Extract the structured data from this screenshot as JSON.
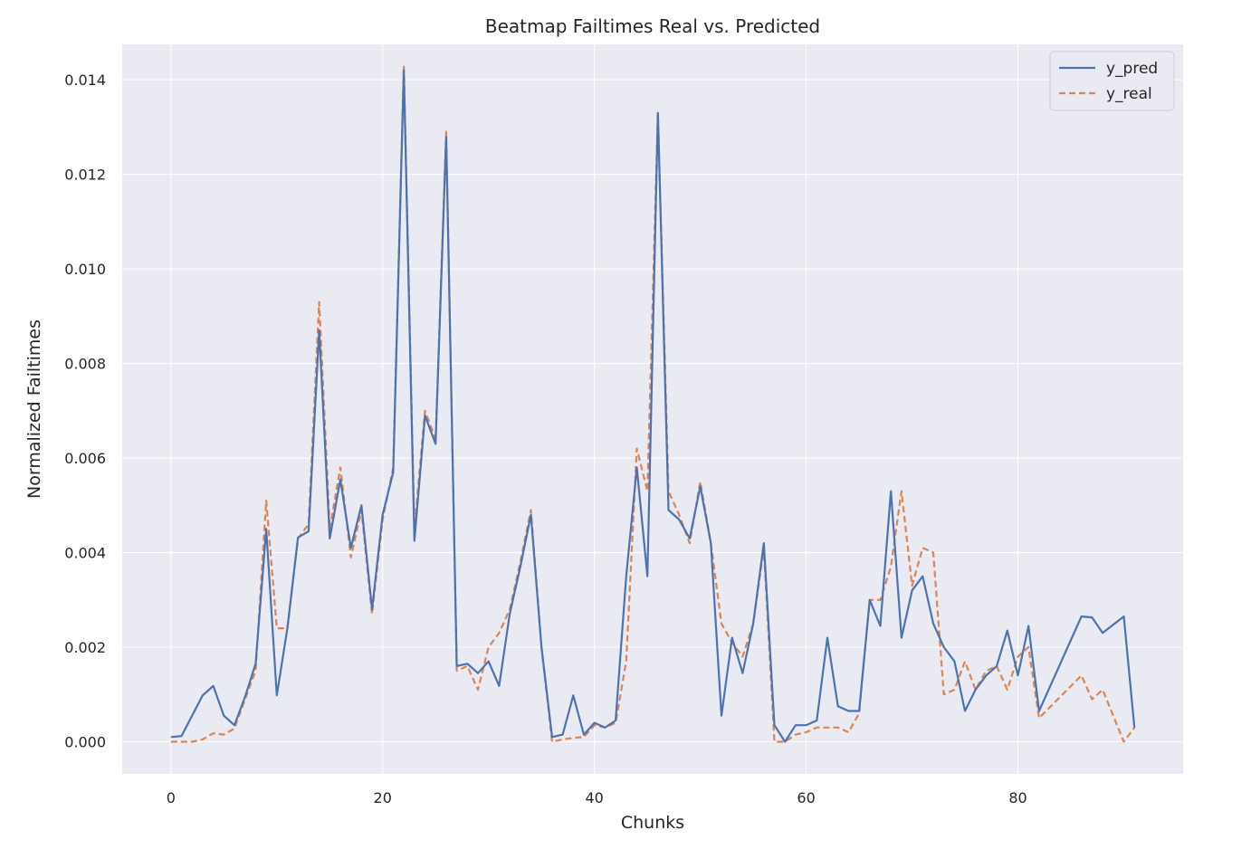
{
  "chart_data": {
    "type": "line",
    "title": "Beatmap Failtimes Real vs. Predicted",
    "xlabel": "Chunks",
    "ylabel": "Normalized Failtimes",
    "xlim": [
      -4.6,
      95.6
    ],
    "ylim": [
      -0.00068,
      0.01475
    ],
    "xticks": [
      0,
      20,
      40,
      60,
      80
    ],
    "yticks": [
      0,
      0.002,
      0.004,
      0.006,
      0.008,
      0.01,
      0.012,
      0.014
    ],
    "ytick_labels": [
      "0.000",
      "0.002",
      "0.004",
      "0.006",
      "0.008",
      "0.010",
      "0.012",
      "0.014"
    ],
    "grid": true,
    "legend_position": "top-right",
    "series": [
      {
        "name": "y_pred",
        "color": "#4c72b0",
        "linestyle": "solid",
        "x": [
          0,
          1,
          2,
          3,
          4,
          5,
          6,
          7,
          8,
          9,
          10,
          11,
          12,
          13,
          14,
          15,
          16,
          17,
          18,
          19,
          20,
          21,
          22,
          23,
          24,
          25,
          26,
          27,
          28,
          29,
          30,
          31,
          32,
          33,
          34,
          35,
          36,
          37,
          38,
          39,
          40,
          41,
          42,
          43,
          44,
          45,
          46,
          47,
          48,
          49,
          50,
          51,
          52,
          53,
          54,
          55,
          56,
          57,
          58,
          59,
          60,
          61,
          62,
          63,
          64,
          65,
          66,
          67,
          68,
          69,
          70,
          71,
          72,
          73,
          74,
          75,
          76,
          77,
          78,
          79,
          80,
          81,
          82,
          86,
          87,
          88,
          90,
          91
        ],
        "y": [
          0.0001,
          0.00012,
          0.00055,
          0.00098,
          0.00118,
          0.00055,
          0.00035,
          0.00095,
          0.00165,
          0.0045,
          0.00098,
          0.0024,
          0.00432,
          0.00445,
          0.0087,
          0.0043,
          0.00555,
          0.0041,
          0.005,
          0.0028,
          0.0048,
          0.0057,
          0.0142,
          0.00425,
          0.0069,
          0.0063,
          0.0128,
          0.0016,
          0.00165,
          0.00145,
          0.0017,
          0.00118,
          0.0027,
          0.0037,
          0.0048,
          0.002,
          0.0001,
          0.00015,
          0.00098,
          0.00015,
          0.0004,
          0.0003,
          0.00045,
          0.0035,
          0.0058,
          0.0035,
          0.0133,
          0.0049,
          0.0047,
          0.0043,
          0.0054,
          0.0042,
          0.00055,
          0.0022,
          0.00145,
          0.0025,
          0.0042,
          0.00035,
          0.0,
          0.00035,
          0.00035,
          0.00045,
          0.0022,
          0.00075,
          0.00065,
          0.00065,
          0.003,
          0.00245,
          0.0053,
          0.0022,
          0.0032,
          0.0035,
          0.0025,
          0.002,
          0.0017,
          0.00065,
          0.0011,
          0.0014,
          0.0016,
          0.00235,
          0.0014,
          0.00245,
          0.00065,
          0.00265,
          0.00263,
          0.0023,
          0.00265,
          0.0003
        ]
      },
      {
        "name": "y_real",
        "color": "#dd8452",
        "linestyle": "dashed",
        "x": [
          0,
          1,
          2,
          3,
          4,
          5,
          6,
          7,
          8,
          9,
          10,
          11,
          12,
          13,
          14,
          15,
          16,
          17,
          18,
          19,
          20,
          21,
          22,
          23,
          24,
          25,
          26,
          27,
          28,
          29,
          30,
          31,
          32,
          33,
          34,
          35,
          36,
          37,
          38,
          39,
          40,
          41,
          42,
          43,
          44,
          45,
          46,
          47,
          48,
          49,
          50,
          51,
          52,
          53,
          54,
          55,
          56,
          57,
          58,
          59,
          60,
          61,
          62,
          63,
          64,
          65,
          66,
          67,
          68,
          69,
          70,
          71,
          72,
          73,
          74,
          75,
          76,
          77,
          78,
          79,
          80,
          81,
          82,
          86,
          87,
          88,
          90,
          91
        ],
        "y": [
          0.0,
          0.0,
          0.0,
          5e-05,
          0.00018,
          0.00015,
          0.00028,
          0.0009,
          0.0015,
          0.0051,
          0.0024,
          0.0024,
          0.0043,
          0.0046,
          0.0093,
          0.0045,
          0.0058,
          0.0039,
          0.0049,
          0.0027,
          0.0047,
          0.0058,
          0.0143,
          0.0045,
          0.007,
          0.0064,
          0.0129,
          0.0015,
          0.0016,
          0.0011,
          0.002,
          0.0023,
          0.0028,
          0.0038,
          0.0049,
          0.002,
          0.0,
          5e-05,
          8e-05,
          0.0001,
          0.00035,
          0.0003,
          0.0004,
          0.0017,
          0.0062,
          0.0053,
          0.0133,
          0.0053,
          0.0048,
          0.0042,
          0.0055,
          0.0042,
          0.0025,
          0.0021,
          0.0018,
          0.0025,
          0.0041,
          0.0,
          0.0,
          0.00015,
          0.0002,
          0.0003,
          0.0003,
          0.0003,
          0.0002,
          0.0006,
          0.003,
          0.003,
          0.0037,
          0.0053,
          0.0033,
          0.0041,
          0.004,
          0.001,
          0.0011,
          0.0017,
          0.0011,
          0.0015,
          0.0016,
          0.0011,
          0.0018,
          0.002,
          0.0005,
          0.0014,
          0.0009,
          0.0011,
          0.0,
          0.0003
        ]
      }
    ]
  }
}
